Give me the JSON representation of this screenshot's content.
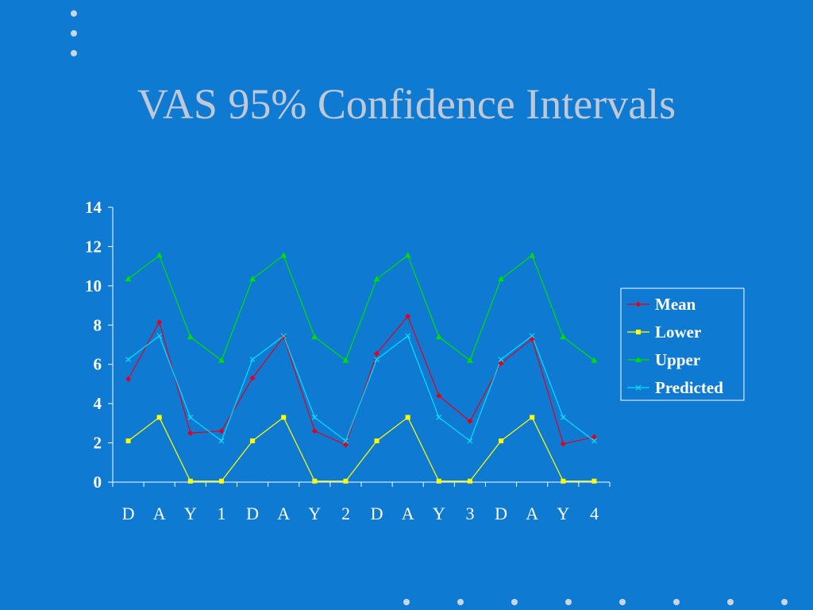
{
  "title": "VAS 95% Confidence Intervals",
  "colors": {
    "background": "#0f7ad2",
    "title": "#bfc8d6",
    "axis": "#ffffff",
    "dots": "#c9d6e6"
  },
  "chart_data": {
    "type": "line",
    "categories": [
      "D",
      "A",
      "Y",
      "1",
      "D",
      "A",
      "Y",
      "2",
      "D",
      "A",
      "Y",
      "3",
      "D",
      "A",
      "Y",
      "4"
    ],
    "ylim": [
      0,
      14
    ],
    "yticks": [
      0,
      2,
      4,
      6,
      8,
      10,
      12,
      14
    ],
    "xlabel": "",
    "ylabel": "",
    "grid": false,
    "legend": "right",
    "series": [
      {
        "name": "Mean",
        "color": "#e5001a",
        "marker": "diamond",
        "values": [
          5.25,
          8.15,
          2.5,
          2.6,
          5.3,
          7.4,
          2.6,
          1.9,
          6.55,
          8.45,
          4.4,
          3.1,
          6.05,
          7.3,
          1.95,
          2.3
        ]
      },
      {
        "name": "Lower",
        "color": "#ffff00",
        "marker": "square",
        "values": [
          2.1,
          3.3,
          0.05,
          0.05,
          2.1,
          3.3,
          0.05,
          0.05,
          2.1,
          3.3,
          0.05,
          0.05,
          2.1,
          3.3,
          0.05,
          0.05
        ]
      },
      {
        "name": "Upper",
        "color": "#00e000",
        "marker": "triangle",
        "values": [
          10.35,
          11.55,
          7.4,
          6.2,
          10.35,
          11.55,
          7.4,
          6.2,
          10.35,
          11.55,
          7.4,
          6.2,
          10.35,
          11.55,
          7.4,
          6.2
        ]
      },
      {
        "name": "Predicted",
        "color": "#00e0ff",
        "marker": "x",
        "values": [
          6.25,
          7.45,
          3.3,
          2.1,
          6.25,
          7.45,
          3.3,
          2.1,
          6.25,
          7.45,
          3.3,
          2.1,
          6.25,
          7.45,
          3.3,
          2.1
        ]
      }
    ]
  }
}
